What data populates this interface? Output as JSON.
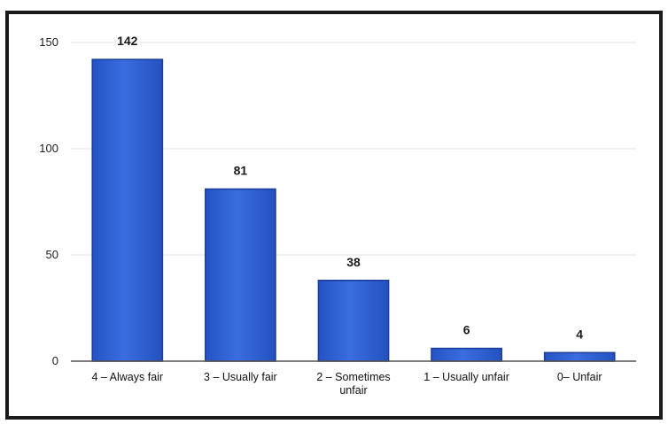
{
  "chart_data": {
    "type": "bar",
    "categories": [
      [
        "4 – Always fair"
      ],
      [
        "3 – Usually fair"
      ],
      [
        "2 – Sometimes",
        "unfair"
      ],
      [
        "1 – Usually unfair"
      ],
      [
        "0– Unfair"
      ]
    ],
    "values": [
      142,
      81,
      38,
      6,
      4
    ],
    "data_labels": [
      "142",
      "81",
      "38",
      "6",
      "4"
    ],
    "yticks": [
      0,
      50,
      100,
      150
    ],
    "ylim": [
      0,
      150
    ],
    "grid": true,
    "legend": "none",
    "bar_color": "#2f5fd0",
    "bar_edge_color": "#1b3f9c"
  }
}
